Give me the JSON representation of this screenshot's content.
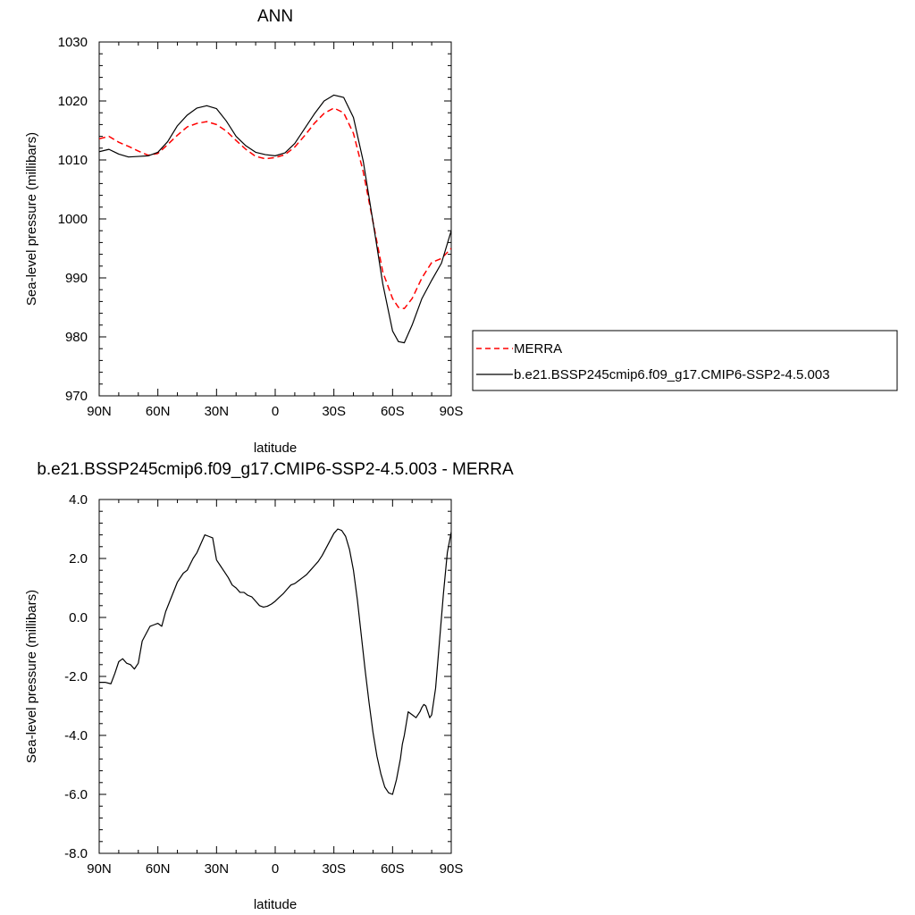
{
  "chart_data": [
    {
      "type": "line",
      "title": "ANN",
      "xlabel": "latitude",
      "ylabel": "Sea-level pressure (millibars)",
      "xlim": [
        90,
        -90
      ],
      "ylim": [
        970,
        1030
      ],
      "x_ticks": [
        90,
        60,
        30,
        0,
        -30,
        -60,
        -90
      ],
      "x_tick_labels": [
        "90N",
        "60N",
        "30N",
        "0",
        "30S",
        "60S",
        "90S"
      ],
      "y_ticks": [
        970,
        980,
        990,
        1000,
        1010,
        1020,
        1030
      ],
      "y_tick_labels": [
        "970",
        "980",
        "990",
        "1000",
        "1010",
        "1020",
        "1030"
      ],
      "grid": false,
      "legend_position": "right",
      "series": [
        {
          "name": "MERRA",
          "color": "#ff0000",
          "dash": "dashed",
          "x": [
            90,
            85,
            80,
            75,
            70,
            65,
            60,
            55,
            50,
            45,
            40,
            35,
            30,
            25,
            20,
            15,
            10,
            5,
            0,
            -5,
            -10,
            -15,
            -20,
            -25,
            -30,
            -35,
            -40,
            -45,
            -50,
            -55,
            -60,
            -63,
            -66,
            -70,
            -75,
            -80,
            -85,
            -90
          ],
          "y": [
            1013.6,
            1014.0,
            1013.0,
            1012.3,
            1011.5,
            1010.8,
            1011.1,
            1012.6,
            1014.2,
            1015.6,
            1016.2,
            1016.5,
            1016.0,
            1014.9,
            1013.3,
            1011.8,
            1010.6,
            1010.2,
            1010.4,
            1010.9,
            1012.2,
            1014.1,
            1016.2,
            1017.9,
            1018.8,
            1018.0,
            1014.5,
            1008.0,
            999.5,
            991.0,
            986.5,
            985.0,
            984.8,
            986.5,
            990.0,
            992.6,
            993.3,
            995.0
          ]
        },
        {
          "name": "b.e21.BSSP245cmip6.f09_g17.CMIP6-SSP2-4.5.003",
          "color": "#000000",
          "dash": "solid",
          "x": [
            90,
            85,
            80,
            75,
            70,
            65,
            60,
            55,
            50,
            45,
            40,
            35,
            30,
            25,
            20,
            15,
            10,
            5,
            0,
            -5,
            -10,
            -15,
            -20,
            -25,
            -30,
            -35,
            -40,
            -45,
            -50,
            -55,
            -60,
            -63,
            -66,
            -70,
            -75,
            -80,
            -85,
            -90
          ],
          "y": [
            1011.4,
            1011.8,
            1011.0,
            1010.5,
            1010.6,
            1010.7,
            1011.3,
            1013.1,
            1015.8,
            1017.6,
            1018.8,
            1019.2,
            1018.7,
            1016.6,
            1014.0,
            1012.4,
            1011.3,
            1010.9,
            1010.7,
            1011.2,
            1012.8,
            1015.3,
            1017.8,
            1020.0,
            1021.0,
            1020.6,
            1017.2,
            1009.8,
            999.5,
            989.0,
            981.0,
            979.2,
            979.0,
            982.0,
            986.5,
            989.6,
            992.5,
            998.0
          ]
        }
      ]
    },
    {
      "type": "line",
      "title": "b.e21.BSSP245cmip6.f09_g17.CMIP6-SSP2-4.5.003 - MERRA",
      "xlabel": "latitude",
      "ylabel": "Sea-level pressure (millibars)",
      "xlim": [
        90,
        -90
      ],
      "ylim": [
        -8,
        4
      ],
      "x_ticks": [
        90,
        60,
        30,
        0,
        -30,
        -60,
        -90
      ],
      "x_tick_labels": [
        "90N",
        "60N",
        "30N",
        "0",
        "30S",
        "60S",
        "90S"
      ],
      "y_ticks": [
        -8,
        -6,
        -4,
        -2,
        0,
        2,
        4
      ],
      "y_tick_labels": [
        "-8.0",
        "-6.0",
        "-4.0",
        "-2.0",
        "0.0",
        "2.0",
        "4.0"
      ],
      "grid": false,
      "series": [
        {
          "color": "#000000",
          "dash": "solid",
          "x": [
            90,
            87,
            84,
            82,
            80,
            78,
            76,
            74,
            72,
            70,
            68,
            66,
            64,
            62,
            60,
            58,
            56,
            53,
            50,
            47,
            45,
            42,
            40,
            38,
            36,
            34,
            32,
            30,
            28,
            26,
            24,
            22,
            20,
            18,
            16,
            14,
            12,
            10,
            8,
            6,
            4,
            2,
            0,
            -2,
            -4,
            -6,
            -8,
            -10,
            -12,
            -14,
            -16,
            -18,
            -20,
            -22,
            -24,
            -26,
            -28,
            -30,
            -32,
            -34,
            -36,
            -38,
            -40,
            -42,
            -44,
            -46,
            -48,
            -50,
            -52,
            -54,
            -56,
            -58,
            -60,
            -62,
            -64,
            -65,
            -66,
            -67,
            -68,
            -70,
            -72,
            -74,
            -75,
            -76,
            -77,
            -78,
            -79,
            -80,
            -82,
            -84,
            -86,
            -88,
            -90
          ],
          "y": [
            -2.2,
            -2.2,
            -2.25,
            -1.9,
            -1.5,
            -1.4,
            -1.55,
            -1.6,
            -1.75,
            -1.55,
            -0.8,
            -0.55,
            -0.3,
            -0.25,
            -0.2,
            -0.3,
            0.2,
            0.7,
            1.2,
            1.5,
            1.6,
            2.0,
            2.2,
            2.5,
            2.8,
            2.75,
            2.7,
            1.95,
            1.75,
            1.55,
            1.35,
            1.1,
            1.0,
            0.85,
            0.85,
            0.75,
            0.7,
            0.55,
            0.4,
            0.35,
            0.38,
            0.45,
            0.55,
            0.68,
            0.8,
            0.95,
            1.1,
            1.15,
            1.25,
            1.35,
            1.45,
            1.6,
            1.75,
            1.9,
            2.1,
            2.35,
            2.6,
            2.85,
            3.0,
            2.95,
            2.75,
            2.3,
            1.6,
            0.6,
            -0.6,
            -1.8,
            -2.9,
            -3.9,
            -4.7,
            -5.3,
            -5.75,
            -5.95,
            -6.0,
            -5.5,
            -4.8,
            -4.3,
            -4.0,
            -3.6,
            -3.2,
            -3.3,
            -3.4,
            -3.2,
            -3.05,
            -2.95,
            -3.0,
            -3.2,
            -3.4,
            -3.3,
            -2.4,
            -0.8,
            0.8,
            2.2,
            2.9
          ]
        }
      ]
    }
  ]
}
